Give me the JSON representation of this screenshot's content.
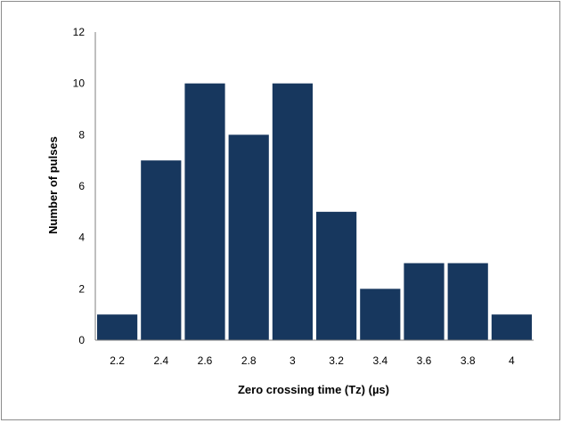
{
  "chart_data": {
    "type": "bar",
    "title": "",
    "xlabel": "Zero crossing time (Tz) (µs)",
    "ylabel": "Number of pulses",
    "categories": [
      "2.2",
      "2.4",
      "2.6",
      "2.8",
      "3",
      "3.2",
      "3.4",
      "3.6",
      "3.8",
      "4"
    ],
    "values": [
      1,
      7,
      10,
      8,
      10,
      5,
      2,
      3,
      3,
      1
    ],
    "ylim": [
      0,
      12
    ],
    "yticks": [
      "0",
      "2",
      "4",
      "6",
      "8",
      "10",
      "12"
    ],
    "grid": false,
    "legend": "none",
    "colors": {
      "bar": "#17375e",
      "axis": "#7f7f7f"
    }
  }
}
